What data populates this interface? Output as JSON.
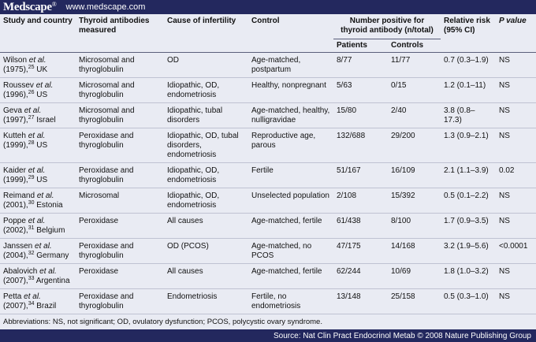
{
  "header": {
    "logo": "Medscape",
    "logo_mark": "®",
    "url": "www.medscape.com"
  },
  "columns": {
    "study": "Study and country",
    "antibodies": "Thyroid antibodies measured",
    "cause": "Cause of infertility",
    "control": "Control",
    "positive_group": "Number positive for thyroid antibody (n/total)",
    "patients": "Patients",
    "controls": "Controls",
    "rr": "Relative risk (95% CI)",
    "p": "P value"
  },
  "rows": [
    {
      "author": "Wilson",
      "etal": "et al.",
      "year": "(1975),",
      "ref": "25",
      "country": "UK",
      "antibodies": "Microsomal and thyroglobulin",
      "cause": "OD",
      "control": "Age-matched, postpartum",
      "patients": "8/77",
      "controls": "11/77",
      "rr": "0.7 (0.3–1.9)",
      "p": "NS"
    },
    {
      "author": "Roussev",
      "etal": "et al.",
      "year": "(1996),",
      "ref": "26",
      "country": "US",
      "antibodies": "Microsomal and thyroglobulin",
      "cause": "Idiopathic, OD, endometriosis",
      "control": "Healthy, nonpregnant",
      "patients": "5/63",
      "controls": "0/15",
      "rr": "1.2 (0.1–11)",
      "p": "NS"
    },
    {
      "author": "Geva",
      "etal": "et al.",
      "year": "(1997),",
      "ref": "27",
      "country": "Israel",
      "antibodies": "Microsomal and thyroglobulin",
      "cause": "Idiopathic, tubal disorders",
      "control": "Age-matched, healthy, nulligravidae",
      "patients": "15/80",
      "controls": "2/40",
      "rr": "3.8 (0.8–17.3)",
      "p": "NS"
    },
    {
      "author": "Kutteh",
      "etal": "et al.",
      "year": "(1999),",
      "ref": "28",
      "country": "US",
      "antibodies": "Peroxidase and thyroglobulin",
      "cause": "Idiopathic, OD, tubal disorders, endometriosis",
      "control": "Reproductive age, parous",
      "patients": "132/688",
      "controls": "29/200",
      "rr": "1.3 (0.9–2.1)",
      "p": "NS"
    },
    {
      "author": "Kaider",
      "etal": "et al.",
      "year": "(1999),",
      "ref": "29",
      "country": "US",
      "antibodies": "Peroxidase and thyroglobulin",
      "cause": "Idiopathic, OD, endometriosis",
      "control": "Fertile",
      "patients": "51/167",
      "controls": "16/109",
      "rr": "2.1 (1.1–3.9)",
      "p": "0.02"
    },
    {
      "author": "Reimand",
      "etal": "et al.",
      "year": "(2001),",
      "ref": "30",
      "country": "Estonia",
      "antibodies": "Microsomal",
      "cause": "Idiopathic, OD, endometriosis",
      "control": "Unselected population",
      "patients": "2/108",
      "controls": "15/392",
      "rr": "0.5 (0.1–2.2)",
      "p": "NS"
    },
    {
      "author": "Poppe",
      "etal": "et al.",
      "year": "(2002),",
      "ref": "31",
      "country": "Belgium",
      "antibodies": "Peroxidase",
      "cause": "All causes",
      "control": "Age-matched, fertile",
      "patients": "61/438",
      "controls": "8/100",
      "rr": "1.7 (0.9–3.5)",
      "p": "NS"
    },
    {
      "author": "Janssen",
      "etal": "et al.",
      "year": "(2004),",
      "ref": "32",
      "country": "Germany",
      "antibodies": "Peroxidase and thyroglobulin",
      "cause": "OD (PCOS)",
      "control": "Age-matched, no PCOS",
      "patients": "47/175",
      "controls": "14/168",
      "rr": "3.2 (1.9–5.6)",
      "p": "<0.0001"
    },
    {
      "author": "Abalovich",
      "etal": "et al.",
      "year": "(2007),",
      "ref": "33",
      "country": "Argentina",
      "antibodies": "Peroxidase",
      "cause": "All causes",
      "control": "Age-matched, fertile",
      "patients": "62/244",
      "controls": "10/69",
      "rr": "1.8 (1.0–3.2)",
      "p": "NS"
    },
    {
      "author": "Petta",
      "etal": "et al.",
      "year": "(2007),",
      "ref": "34",
      "country": "Brazil",
      "antibodies": "Peroxidase and thyroglobulin",
      "cause": "Endometriosis",
      "control": "Fertile, no endometriosis",
      "patients": "13/148",
      "controls": "25/158",
      "rr": "0.5 (0.3–1.0)",
      "p": "NS"
    }
  ],
  "footnote": "Abbreviations: NS, not significant; OD, ovulatory dysfunction; PCOS, polycystic ovary syndrome.",
  "source": "Source: Nat Clin Pract Endocrinol Metab © 2008 Nature Publishing Group"
}
